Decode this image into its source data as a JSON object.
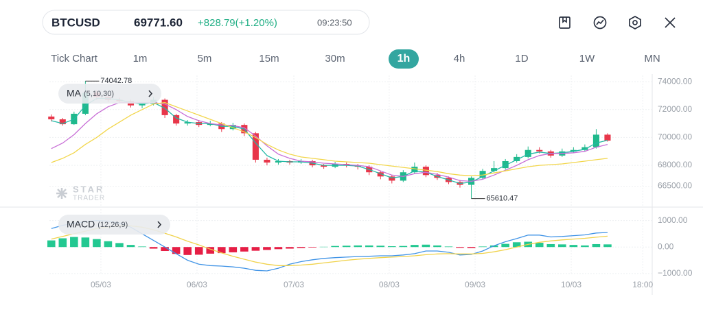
{
  "header": {
    "symbol": "BTCUSD",
    "price": "69771.60",
    "change": "+828.79(+1.20%)",
    "time": "09:23:50"
  },
  "timeframes": [
    "Tick Chart",
    "1m",
    "5m",
    "15m",
    "30m",
    "1h",
    "4h",
    "1D",
    "1W",
    "MN"
  ],
  "active_timeframe_index": 5,
  "watermark": {
    "brand": "STAR",
    "sub": "TRADER"
  },
  "chart_data": [
    {
      "type": "candlestick",
      "indicator": {
        "name": "MA",
        "params": "(5,10,30)"
      },
      "x": [
        0,
        3,
        6,
        9,
        12,
        15,
        18,
        21,
        24,
        27,
        30,
        33,
        36,
        39,
        42,
        45,
        48,
        51,
        54,
        57,
        60,
        63,
        66,
        69,
        72,
        75,
        78,
        81,
        84,
        87,
        90,
        93,
        96,
        99,
        102,
        105,
        108,
        111,
        114,
        117,
        120,
        123,
        126,
        129,
        132,
        135,
        138,
        141,
        144,
        147
      ],
      "open": [
        71500,
        71300,
        70950,
        71700,
        73200,
        72900,
        72700,
        72600,
        72300,
        72400,
        72700,
        71600,
        71000,
        71100,
        70900,
        71000,
        70600,
        70900,
        70300,
        68400,
        68200,
        68300,
        68200,
        68300,
        68000,
        67900,
        68100,
        68000,
        67900,
        67500,
        67200,
        66900,
        67500,
        67900,
        67300,
        67100,
        66800,
        66600,
        67100,
        67600,
        67800,
        68300,
        68600,
        69100,
        69000,
        68700,
        69000,
        69100,
        69300,
        70200
      ],
      "high": [
        71650,
        71400,
        71850,
        74042.78,
        73400,
        73050,
        72850,
        72700,
        72550,
        72900,
        72800,
        71700,
        71250,
        71250,
        71200,
        71100,
        71050,
        71000,
        70400,
        68550,
        68450,
        68400,
        68450,
        68400,
        68100,
        68250,
        68200,
        68100,
        68000,
        67600,
        67300,
        67650,
        68200,
        68000,
        67450,
        67200,
        66950,
        67200,
        67750,
        68300,
        68450,
        68800,
        69350,
        69300,
        69100,
        69200,
        69300,
        69500,
        70600,
        70300
      ],
      "low": [
        71150,
        70850,
        70900,
        71600,
        72700,
        72550,
        72450,
        72150,
        72100,
        72300,
        71400,
        70850,
        70850,
        70750,
        70800,
        70400,
        70500,
        70100,
        68200,
        68000,
        68050,
        68050,
        68100,
        67850,
        67750,
        67800,
        67850,
        67700,
        67300,
        67000,
        66700,
        66800,
        67400,
        67150,
        66950,
        66650,
        66400,
        65610.47,
        67000,
        67500,
        67700,
        68200,
        68500,
        68850,
        68550,
        68600,
        68900,
        69000,
        69200,
        69700
      ],
      "close": [
        71300,
        70950,
        71700,
        73200,
        72900,
        72700,
        72600,
        72300,
        72400,
        72700,
        71600,
        71000,
        71100,
        70900,
        71000,
        70600,
        70900,
        70300,
        68400,
        68200,
        68300,
        68200,
        68300,
        68000,
        67900,
        68100,
        68000,
        67900,
        67500,
        67200,
        66900,
        67500,
        67900,
        67300,
        67100,
        66800,
        66600,
        67100,
        67600,
        67800,
        68300,
        68600,
        69100,
        69000,
        68700,
        69000,
        69100,
        69300,
        70200,
        69771.6
      ],
      "up_color": "#1fb98c",
      "down_color": "#e8364a",
      "series": [
        {
          "color": "#22b9a5",
          "values": [
            71200,
            71000,
            71300,
            72300,
            72800,
            72800,
            72700,
            72500,
            72400,
            72500,
            72100,
            71400,
            71100,
            71000,
            71000,
            70800,
            70800,
            70600,
            69600,
            68700,
            68300,
            68250,
            68250,
            68150,
            68000,
            68000,
            68000,
            67950,
            67700,
            67400,
            67100,
            67200,
            67600,
            67500,
            67200,
            66950,
            66700,
            66800,
            67200,
            67600,
            68000,
            68400,
            68800,
            68950,
            68850,
            68900,
            69000,
            69150,
            69600,
            69800
          ]
        },
        {
          "color": "#c86ed6",
          "values": [
            69200,
            69600,
            70200,
            71000,
            71700,
            72200,
            72500,
            72500,
            72500,
            72500,
            72400,
            72000,
            71500,
            71200,
            71000,
            70900,
            70850,
            70700,
            70100,
            69400,
            68800,
            68500,
            68300,
            68250,
            68150,
            68100,
            68050,
            68000,
            67900,
            67600,
            67300,
            67200,
            67400,
            67500,
            67350,
            67150,
            66900,
            66850,
            67000,
            67300,
            67650,
            68000,
            68400,
            68700,
            68850,
            68850,
            68900,
            69000,
            69300,
            69500
          ]
        },
        {
          "color": "#f2d64b",
          "values": [
            68200,
            68500,
            68900,
            69500,
            70000,
            70600,
            71100,
            71600,
            72000,
            72400,
            72500,
            72200,
            71900,
            71600,
            71300,
            71000,
            70700,
            70400,
            70000,
            69500,
            69100,
            68800,
            68600,
            68500,
            68400,
            68300,
            68250,
            68200,
            68150,
            68050,
            67950,
            67850,
            67750,
            67650,
            67550,
            67400,
            67300,
            67250,
            67300,
            67450,
            67600,
            67750,
            67900,
            68000,
            68050,
            68100,
            68200,
            68300,
            68400,
            68500
          ]
        }
      ],
      "annotations": [
        {
          "text": "74042.78",
          "x": 9,
          "y": 74042.78
        },
        {
          "text": "65610.47",
          "x": 111,
          "y": 65610.47
        }
      ],
      "xlim": [
        -0.5,
        158.8
      ],
      "ylim": [
        65100,
        74450
      ],
      "yticks": [
        {
          "value": 74000,
          "label": "74000.00"
        },
        {
          "value": 72000,
          "label": "72000.00"
        },
        {
          "value": 70000,
          "label": "70000.00"
        },
        {
          "value": 68000,
          "label": "68000.00"
        },
        {
          "value": 66500,
          "label": "66500.00"
        }
      ],
      "grid": true
    },
    {
      "type": "macd",
      "indicator": {
        "name": "MACD",
        "params": "(12,26,9)"
      },
      "x": [
        0,
        3,
        6,
        9,
        12,
        15,
        18,
        21,
        24,
        27,
        30,
        33,
        36,
        39,
        42,
        45,
        48,
        51,
        54,
        57,
        60,
        63,
        66,
        69,
        72,
        75,
        78,
        81,
        84,
        87,
        90,
        93,
        96,
        99,
        102,
        105,
        108,
        111,
        114,
        117,
        120,
        123,
        126,
        129,
        132,
        135,
        138,
        141,
        144,
        147
      ],
      "histogram": {
        "up_color": "#23c891",
        "down_color": "#e61e45",
        "values": [
          250,
          330,
          380,
          360,
          300,
          220,
          150,
          80,
          20,
          -60,
          -150,
          -260,
          -300,
          -290,
          -250,
          -230,
          -200,
          -170,
          -140,
          -110,
          -80,
          -60,
          -40,
          -20,
          10,
          40,
          50,
          60,
          60,
          50,
          30,
          40,
          80,
          90,
          60,
          20,
          -30,
          -40,
          20,
          60,
          120,
          180,
          200,
          160,
          110,
          100,
          80,
          60,
          110,
          100
        ]
      },
      "series": [
        {
          "color": "#3f93e6",
          "values": [
            700,
            820,
            900,
            950,
            1000,
            980,
            900,
            750,
            500,
            250,
            0,
            -250,
            -500,
            -650,
            -700,
            -720,
            -750,
            -800,
            -880,
            -900,
            -800,
            -650,
            -550,
            -480,
            -430,
            -400,
            -380,
            -360,
            -350,
            -330,
            -330,
            -300,
            -250,
            -150,
            -150,
            -200,
            -300,
            -280,
            -150,
            50,
            200,
            320,
            450,
            450,
            380,
            400,
            430,
            460,
            530,
            550
          ]
        },
        {
          "color": "#f0d24a",
          "values": [
            300,
            400,
            500,
            600,
            700,
            760,
            800,
            800,
            750,
            650,
            520,
            380,
            220,
            80,
            -80,
            -220,
            -350,
            -460,
            -570,
            -650,
            -700,
            -700,
            -680,
            -650,
            -600,
            -550,
            -500,
            -460,
            -430,
            -400,
            -380,
            -360,
            -330,
            -290,
            -260,
            -250,
            -260,
            -260,
            -240,
            -180,
            -100,
            0,
            100,
            180,
            230,
            270,
            300,
            330,
            370,
            410
          ]
        }
      ],
      "xlim": [
        -0.5,
        158.8
      ],
      "ylim": [
        -1030,
        1430
      ],
      "yticks": [
        {
          "value": 1000,
          "label": "1000.00"
        },
        {
          "value": 0,
          "label": "0.00"
        },
        {
          "value": -1000,
          "label": "−1000.00"
        }
      ],
      "xticks": [
        {
          "value": 13.1,
          "label": "05/03"
        },
        {
          "value": 38.5,
          "label": "06/03"
        },
        {
          "value": 64.1,
          "label": "07/03"
        },
        {
          "value": 89.3,
          "label": "08/03"
        },
        {
          "value": 112,
          "label": "09/03"
        },
        {
          "value": 137.4,
          "label": "10/03"
        },
        {
          "value": 156.3,
          "label": "18:00"
        }
      ],
      "grid": true
    }
  ]
}
